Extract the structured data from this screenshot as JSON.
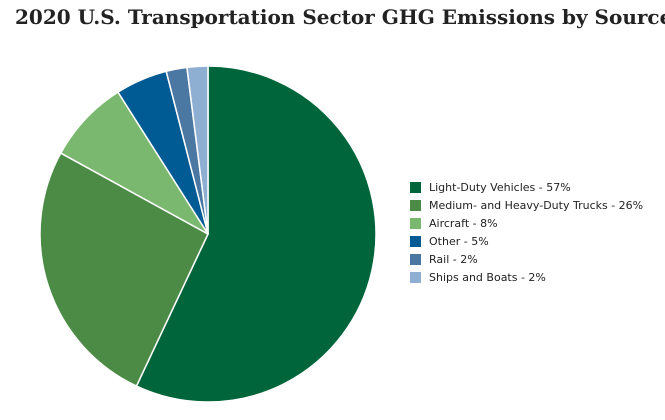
{
  "chart_data": {
    "type": "pie",
    "title": "2020 U.S. Transportation Sector GHG Emissions by Source",
    "categories": [
      "Light-Duty Vehicles",
      "Medium- and Heavy-Duty Trucks",
      "Aircraft",
      "Other",
      "Rail",
      "Ships and Boats"
    ],
    "values": [
      57,
      26,
      8,
      5,
      2,
      2
    ],
    "legend_labels": [
      "Light-Duty Vehicles - 57%",
      "Medium- and Heavy-Duty Trucks - 26%",
      "Aircraft - 8%",
      "Other - 5%",
      "Rail - 2%",
      "Ships and Boats - 2%"
    ],
    "colors": [
      "#00653a",
      "#4c8b46",
      "#79b86e",
      "#005a94",
      "#4a78a3",
      "#8eaed2"
    ],
    "legend_position": "right",
    "start_direction": "top",
    "direction": "clockwise"
  }
}
